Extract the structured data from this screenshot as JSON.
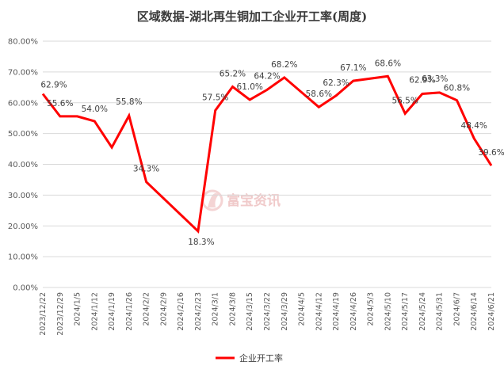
{
  "chart_data": {
    "type": "line",
    "title": "区域数据-湖北再生铜加工企业开工率(周度)",
    "xlabel": "",
    "ylabel": "",
    "ylim": [
      0,
      80
    ],
    "y_ticks": [
      "0.00%",
      "10.00%",
      "20.00%",
      "30.00%",
      "40.00%",
      "50.00%",
      "60.00%",
      "70.00%",
      "80.00%"
    ],
    "grid": true,
    "legend_position": "bottom",
    "color": "#ff0000",
    "watermark": "富宝资讯",
    "x": [
      "2023/12/22",
      "2023/12/29",
      "2024/1/5",
      "2024/1/12",
      "2024/1/19",
      "2024/1/26",
      "2024/2/2",
      "2024/2/9",
      "2024/2/16",
      "2024/2/23",
      "2024/3/1",
      "2024/3/8",
      "2024/3/15",
      "2024/3/22",
      "2024/3/29",
      "2024/4/5",
      "2024/4/12",
      "2024/4/19",
      "2024/4/26",
      "2024/5/3",
      "2024/5/10",
      "2024/5/17",
      "2024/5/24",
      "2024/5/31",
      "2024/6/7",
      "2024/6/14",
      "2024/6/21"
    ],
    "series": [
      {
        "name": "企业开工率",
        "values": [
          62.9,
          55.6,
          55.6,
          54.0,
          45.5,
          55.8,
          34.3,
          null,
          null,
          18.3,
          57.5,
          65.2,
          61.0,
          64.2,
          68.2,
          null,
          58.6,
          62.3,
          67.1,
          null,
          68.6,
          56.5,
          62.9,
          63.3,
          60.8,
          48.4,
          39.6
        ],
        "labels": [
          "62.9%",
          "55.6%",
          "",
          "54.0%",
          "",
          "55.8%",
          "34.3%",
          "",
          "",
          "18.3%",
          "57.5%",
          "65.2%",
          "61.0%",
          "64.2%",
          "68.2%",
          "",
          "58.6%",
          "62.3%",
          "67.1%",
          "",
          "68.6%",
          "56.5%",
          "62.9%",
          "63.3%",
          "60.8%",
          "48.4%",
          "39.6%"
        ]
      }
    ]
  }
}
